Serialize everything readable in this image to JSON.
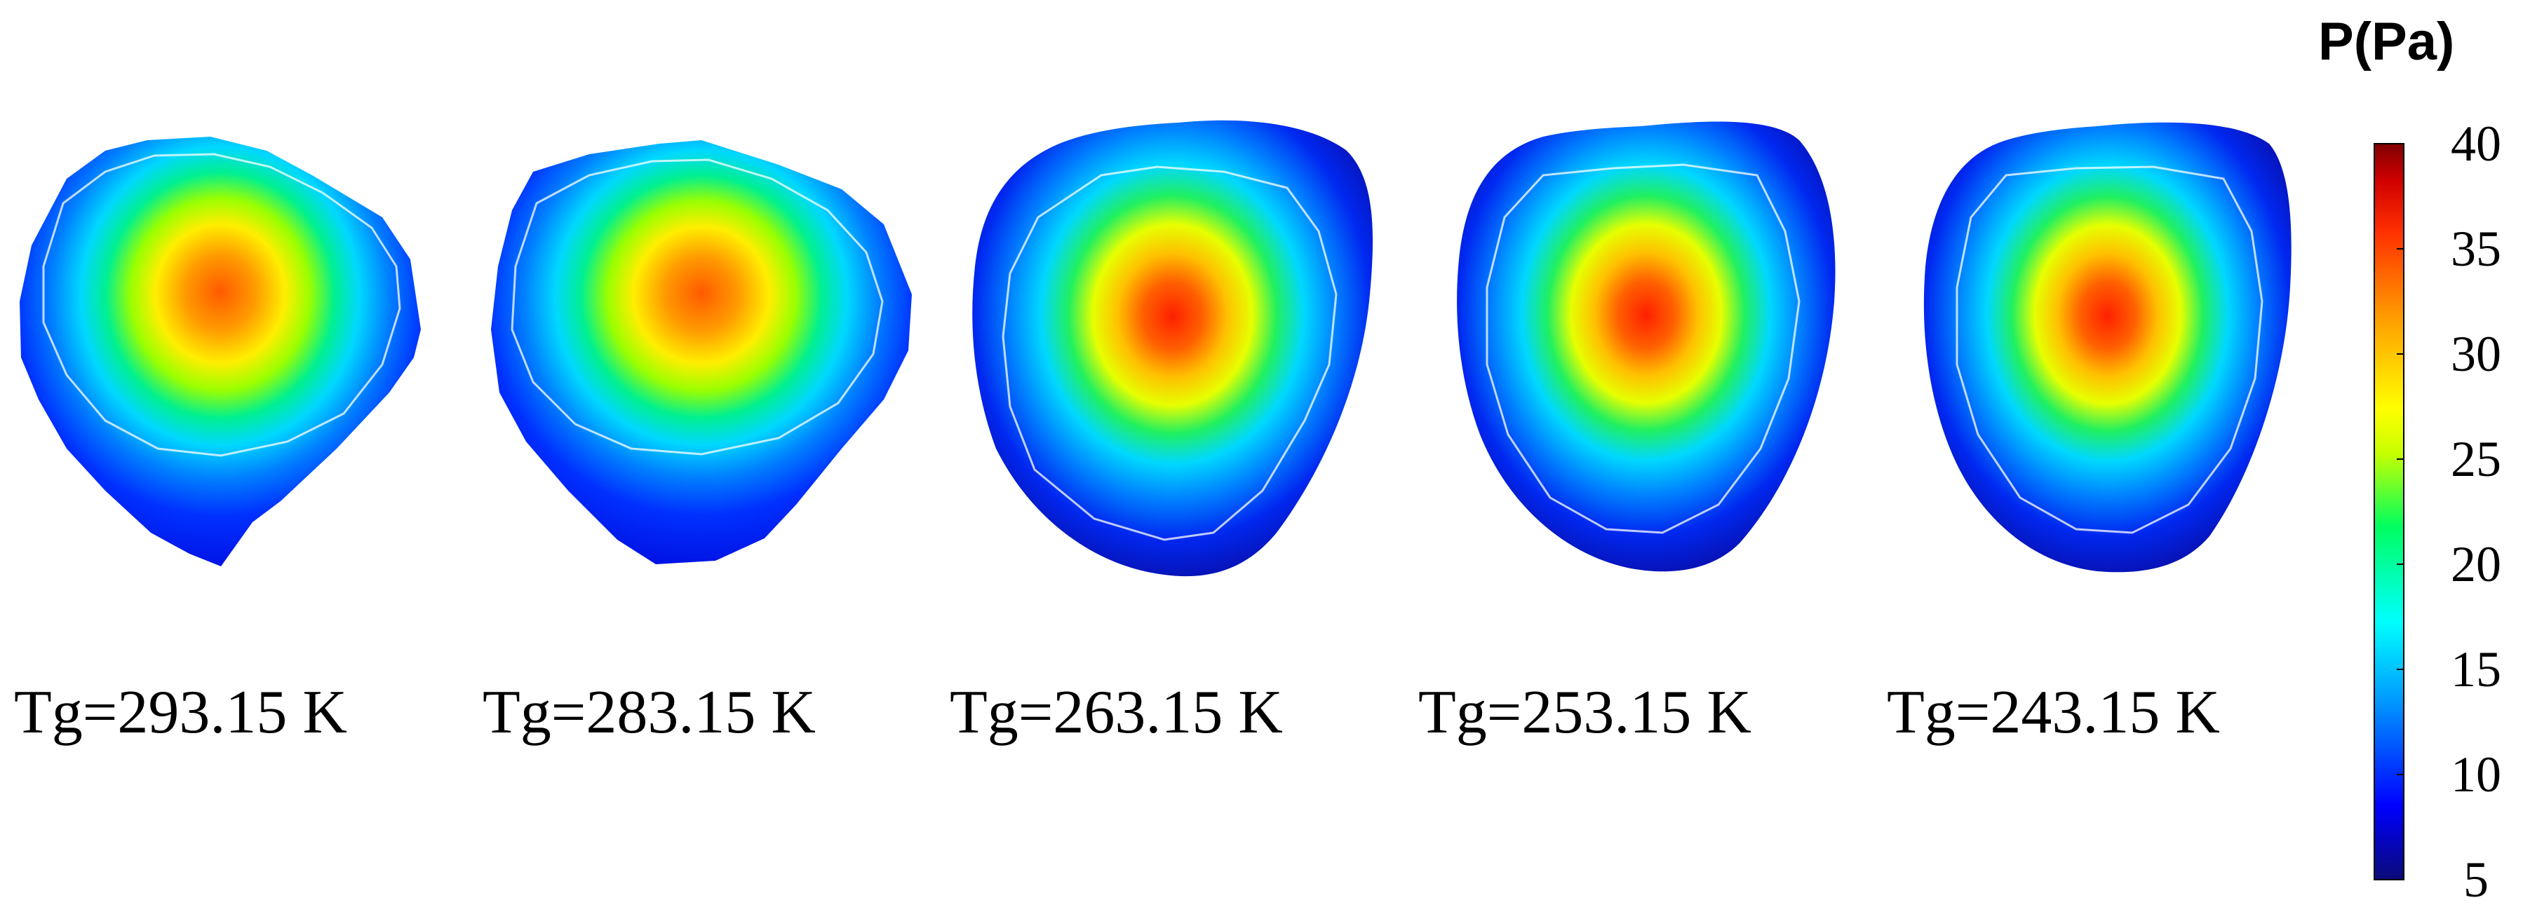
{
  "panels": [
    {
      "label": "Tg=293.15 K",
      "peak": 32
    },
    {
      "label": "Tg=283.15 K",
      "peak": 31
    },
    {
      "label": "Tg=263.15 K",
      "peak": 37
    },
    {
      "label": "Tg=253.15 K",
      "peak": 37
    },
    {
      "label": "Tg=243.15 K",
      "peak": 38
    }
  ],
  "colorbar": {
    "title": "P(Pa)",
    "min": 5,
    "max": 40,
    "ticks": [
      "40",
      "35",
      "30",
      "25",
      "20",
      "15",
      "10",
      "5"
    ],
    "colors": [
      "#0a0a78",
      "#0000ff",
      "#00a0ff",
      "#00ffff",
      "#00ff60",
      "#c8ff00",
      "#ffff00",
      "#ffa000",
      "#ff3000",
      "#c80000",
      "#800000"
    ]
  }
}
